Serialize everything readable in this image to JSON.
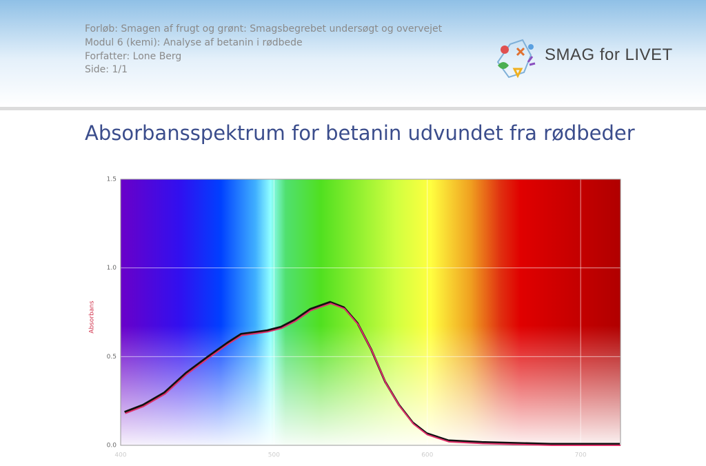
{
  "header": {
    "lines": [
      "Forløb: Smagen af frugt og grønt: Smagsbegrebet undersøgt og overvejet",
      "Modul 6 (kemi): Analyse af betanin i rødbede",
      "Forfatter: Lone Berg",
      "Side: 1/1"
    ],
    "logo": "SMAG for LIVET"
  },
  "chart_data": {
    "type": "line",
    "title": "Absorbansspektrum for betanin udvundet fra rødbeder",
    "ylabel": "Absorbans",
    "x": [
      403,
      415,
      429,
      443,
      457,
      470,
      479,
      488,
      496,
      505,
      514,
      524,
      537,
      546,
      555,
      564,
      573,
      582,
      591,
      600,
      614,
      636,
      681,
      726
    ],
    "values": [
      0.18,
      0.22,
      0.29,
      0.4,
      0.49,
      0.57,
      0.62,
      0.63,
      0.64,
      0.66,
      0.7,
      0.76,
      0.8,
      0.77,
      0.68,
      0.53,
      0.35,
      0.22,
      0.12,
      0.06,
      0.02,
      0.01,
      0.0,
      0.0
    ],
    "color": "#e0306a",
    "xlim": [
      400,
      726
    ],
    "xticks": [
      400,
      500,
      600,
      700
    ],
    "ylim": [
      0,
      1.5
    ],
    "yticks": [
      {
        "value": 0,
        "label": "0.0"
      },
      0.5,
      {
        "value": 1,
        "label": "1.0"
      },
      {
        "value": 1.5,
        "label": "1.5"
      }
    ],
    "grid": true
  }
}
